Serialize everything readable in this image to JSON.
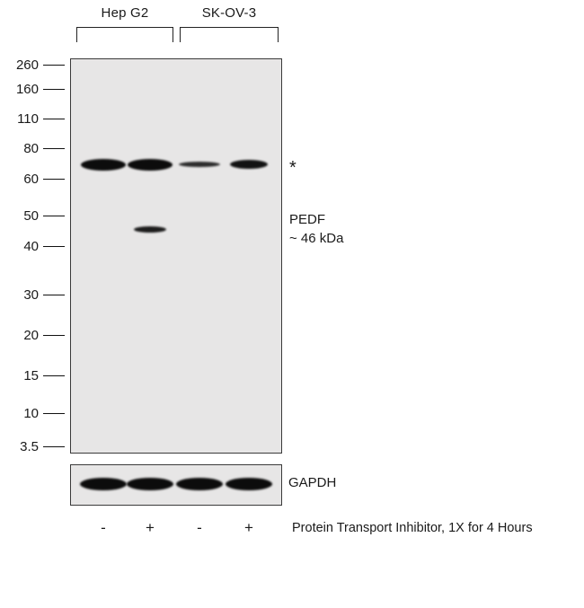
{
  "figure": {
    "groups": [
      {
        "label": "Hep G2"
      },
      {
        "label": "SK-OV-3"
      }
    ],
    "mw_markers": [
      "260",
      "160",
      "110",
      "80",
      "60",
      "50",
      "40",
      "30",
      "20",
      "15",
      "10",
      "3.5"
    ],
    "annotations": {
      "nonspecific": "*",
      "target_name": "PEDF",
      "target_size": "~ 46 kDa",
      "loading_control": "GAPDH"
    },
    "treatments": [
      "-",
      "+",
      "-",
      "+"
    ],
    "treatment_caption": "Protein Transport Inhibitor, 1X for 4 Hours",
    "bands": {
      "main": [
        {
          "lane": 1,
          "target": "asterisk",
          "intensity": "strong"
        },
        {
          "lane": 2,
          "target": "asterisk",
          "intensity": "strong"
        },
        {
          "lane": 3,
          "target": "asterisk",
          "intensity": "faint"
        },
        {
          "lane": 4,
          "target": "asterisk",
          "intensity": "medium"
        },
        {
          "lane": 2,
          "target": "pedf",
          "intensity": "weak"
        }
      ],
      "gapdh": [
        {
          "lane": 1,
          "intensity": "loading"
        },
        {
          "lane": 2,
          "intensity": "loading"
        },
        {
          "lane": 3,
          "intensity": "loading"
        },
        {
          "lane": 4,
          "intensity": "loading"
        }
      ]
    }
  }
}
